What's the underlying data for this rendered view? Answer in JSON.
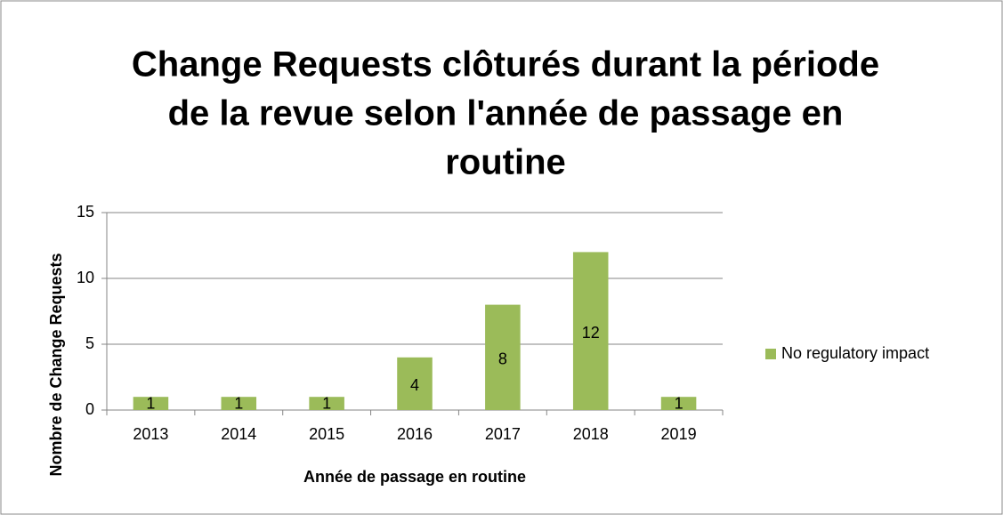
{
  "chart_data": {
    "type": "bar",
    "title": [
      "Change Requests clôturés durant la période",
      "de la revue selon l'année de passage en",
      "routine"
    ],
    "categories": [
      "2013",
      "2014",
      "2015",
      "2016",
      "2017",
      "2018",
      "2019"
    ],
    "series": [
      {
        "name": "No regulatory impact",
        "color": "#9bbb59",
        "values": [
          1,
          1,
          1,
          4,
          8,
          12,
          1
        ]
      }
    ],
    "xlabel": "Année de passage en routine",
    "ylabel": "Nombre  de Change Requests",
    "ylim": [
      0,
      15
    ],
    "yticks": [
      0,
      5,
      10,
      15
    ],
    "grid": true,
    "legend": "right"
  }
}
